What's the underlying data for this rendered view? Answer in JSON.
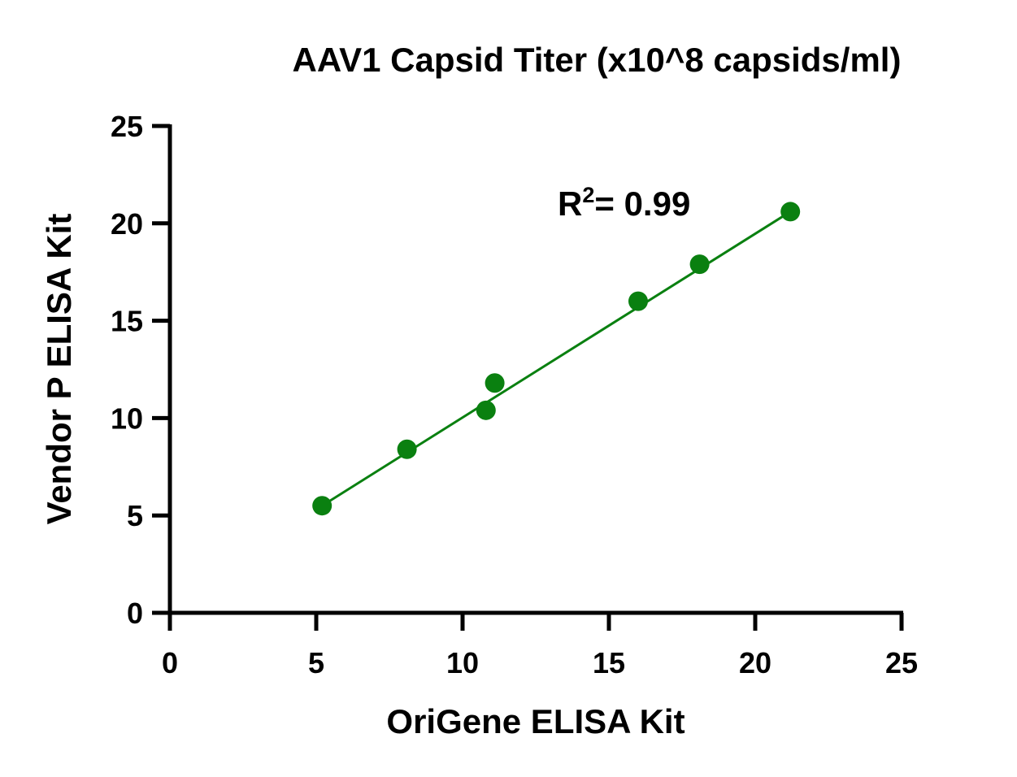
{
  "chart_data": {
    "type": "scatter",
    "title": "AAV1 Capsid Titer (x10^8 capsids/ml)",
    "xlabel": "OriGene ELISA Kit",
    "ylabel": "Vendor P ELISA Kit",
    "xlim": [
      0,
      25
    ],
    "ylim": [
      0,
      25
    ],
    "xticks": [
      0,
      5,
      10,
      15,
      20,
      25
    ],
    "yticks": [
      0,
      5,
      10,
      15,
      20,
      25
    ],
    "grid": false,
    "series": [
      {
        "color": "#0a8010",
        "points": [
          {
            "x": 5.2,
            "y": 5.5
          },
          {
            "x": 8.1,
            "y": 8.4
          },
          {
            "x": 10.8,
            "y": 10.4
          },
          {
            "x": 11.1,
            "y": 11.8
          },
          {
            "x": 16.0,
            "y": 16.0
          },
          {
            "x": 18.1,
            "y": 17.9
          },
          {
            "x": 21.2,
            "y": 20.6
          }
        ]
      }
    ],
    "fit_line": {
      "x1": 5.2,
      "y1": 5.5,
      "x2": 21.2,
      "y2": 20.6,
      "color": "#0a8010"
    },
    "annotation": {
      "base": "R",
      "sup": "2",
      "rest": "= 0.99"
    }
  }
}
